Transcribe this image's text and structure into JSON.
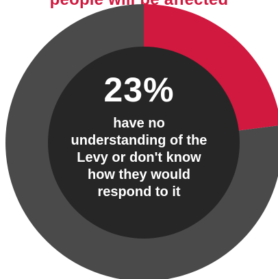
{
  "heading": {
    "text": "people will be affected"
  },
  "chart_data": {
    "type": "pie",
    "title": "",
    "slices": [
      {
        "label": "have no understanding of the Levy or don't know how they would respond to it",
        "value": 23,
        "color": "#d1193f"
      },
      {
        "label": "",
        "value": 77,
        "color": "#4a4a4a"
      }
    ],
    "center_value": "23%",
    "center_caption": "have no understanding of the Levy or don't know how they would respond to it",
    "caption_lines": [
      "have no",
      "understanding of the",
      "Levy or don't know",
      "how they would",
      "respond to it"
    ]
  },
  "colors": {
    "highlight": "#d1193f",
    "ring": "#4a4a4a",
    "inner": "#262626"
  }
}
